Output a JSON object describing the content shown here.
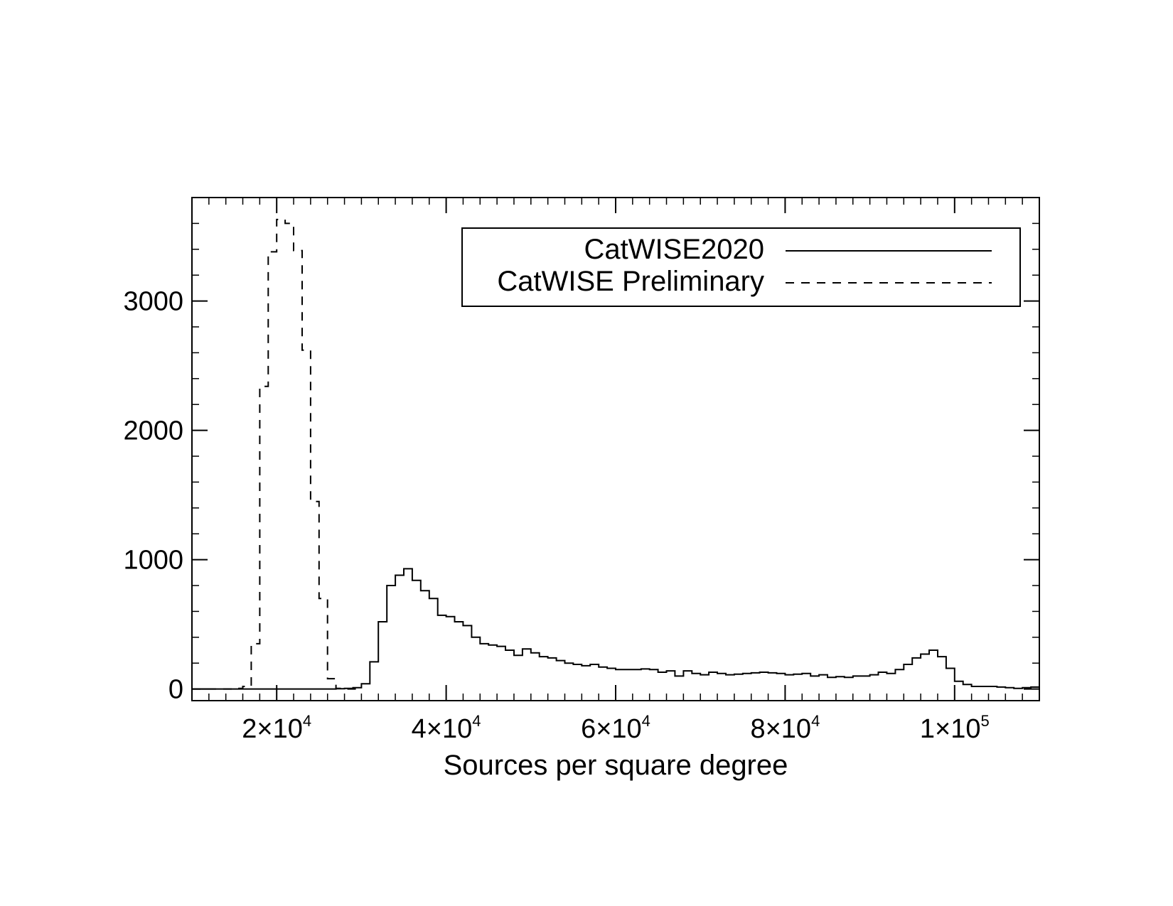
{
  "chart_data": {
    "type": "line",
    "subtype": "step-histogram",
    "title": "",
    "xlabel": "Sources per square degree",
    "ylabel": "",
    "xlim": [
      10000,
      110000
    ],
    "ylim": [
      -90,
      3800
    ],
    "grid": false,
    "legend_position": "top-right",
    "x_ticks": [
      {
        "value": 20000,
        "mantissa": "2",
        "exponent": "4"
      },
      {
        "value": 40000,
        "mantissa": "4",
        "exponent": "4"
      },
      {
        "value": 60000,
        "mantissa": "6",
        "exponent": "4"
      },
      {
        "value": 80000,
        "mantissa": "8",
        "exponent": "4"
      },
      {
        "value": 100000,
        "mantissa": "1",
        "exponent": "5"
      }
    ],
    "y_ticks": [
      {
        "value": 0,
        "label": "0"
      },
      {
        "value": 1000,
        "label": "1000"
      },
      {
        "value": 2000,
        "label": "2000"
      },
      {
        "value": 3000,
        "label": "3000"
      }
    ],
    "bin_width": 1000,
    "series": [
      {
        "name": "CatWISE2020",
        "style": "solid",
        "x": [
          10000,
          11000,
          12000,
          13000,
          14000,
          15000,
          16000,
          17000,
          18000,
          19000,
          20000,
          21000,
          22000,
          23000,
          24000,
          25000,
          26000,
          27000,
          28000,
          29000,
          30000,
          31000,
          32000,
          33000,
          34000,
          35000,
          36000,
          37000,
          38000,
          39000,
          40000,
          41000,
          42000,
          43000,
          44000,
          45000,
          46000,
          47000,
          48000,
          49000,
          50000,
          51000,
          52000,
          53000,
          54000,
          55000,
          56000,
          57000,
          58000,
          59000,
          60000,
          61000,
          62000,
          63000,
          64000,
          65000,
          66000,
          67000,
          68000,
          69000,
          70000,
          71000,
          72000,
          73000,
          74000,
          75000,
          76000,
          77000,
          78000,
          79000,
          80000,
          81000,
          82000,
          83000,
          84000,
          85000,
          86000,
          87000,
          88000,
          89000,
          90000,
          91000,
          92000,
          93000,
          94000,
          95000,
          96000,
          97000,
          98000,
          99000,
          100000,
          101000,
          102000,
          103000,
          104000,
          105000,
          106000,
          107000,
          108000,
          109000
        ],
        "values": [
          0,
          0,
          0,
          0,
          0,
          0,
          0,
          0,
          0,
          0,
          0,
          0,
          0,
          0,
          0,
          0,
          0,
          2,
          5,
          10,
          40,
          210,
          520,
          800,
          880,
          930,
          840,
          760,
          700,
          570,
          560,
          520,
          490,
          400,
          350,
          340,
          330,
          300,
          260,
          310,
          280,
          250,
          240,
          220,
          200,
          190,
          180,
          190,
          170,
          160,
          150,
          150,
          150,
          155,
          150,
          130,
          140,
          100,
          140,
          120,
          110,
          130,
          120,
          110,
          115,
          120,
          125,
          130,
          125,
          120,
          110,
          115,
          120,
          100,
          110,
          90,
          95,
          90,
          100,
          100,
          110,
          130,
          120,
          150,
          190,
          240,
          270,
          300,
          250,
          160,
          60,
          35,
          20,
          20,
          20,
          15,
          10,
          5,
          10,
          15
        ]
      },
      {
        "name": "CatWISE Preliminary",
        "style": "dashed",
        "x": [
          10000,
          11000,
          12000,
          13000,
          14000,
          15000,
          16000,
          17000,
          18000,
          19000,
          20000,
          21000,
          22000,
          23000,
          24000,
          25000,
          26000,
          27000,
          28000,
          29000
        ],
        "values": [
          0,
          0,
          0,
          0,
          0,
          5,
          20,
          350,
          2340,
          3380,
          3630,
          3600,
          3390,
          2620,
          1450,
          700,
          80,
          5,
          0,
          0
        ]
      }
    ]
  }
}
